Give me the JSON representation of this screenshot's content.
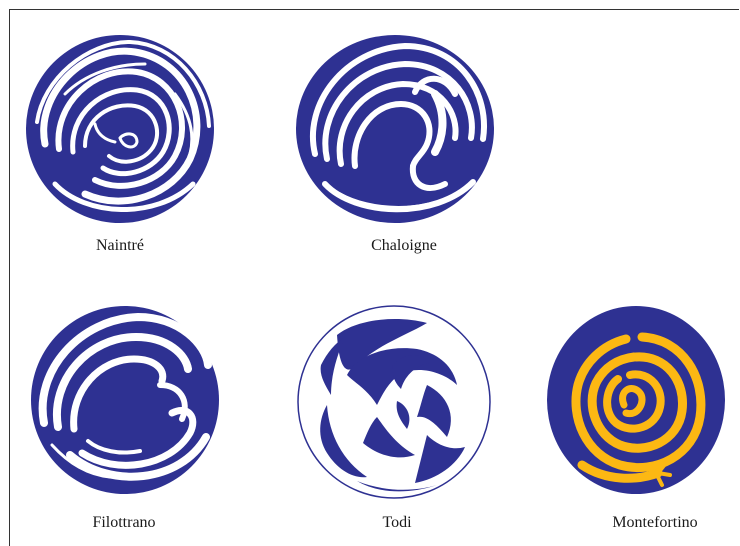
{
  "figure": {
    "colors": {
      "ink": "#2e3192",
      "paper": "#ffffff",
      "gold": "#fcb813"
    },
    "items": [
      {
        "id": "naintre",
        "label": "Naintré",
        "fill": "ink-swirl"
      },
      {
        "id": "chaloigne",
        "label": "Chaloigne",
        "fill": "ink-swirl"
      },
      {
        "id": "filottrano",
        "label": "Filottrano",
        "fill": "ink-swirl"
      },
      {
        "id": "todi",
        "label": "Todi",
        "fill": "ink-swirl"
      },
      {
        "id": "montefortino",
        "label": "Montefortino",
        "fill": "gold-spiral"
      }
    ]
  }
}
